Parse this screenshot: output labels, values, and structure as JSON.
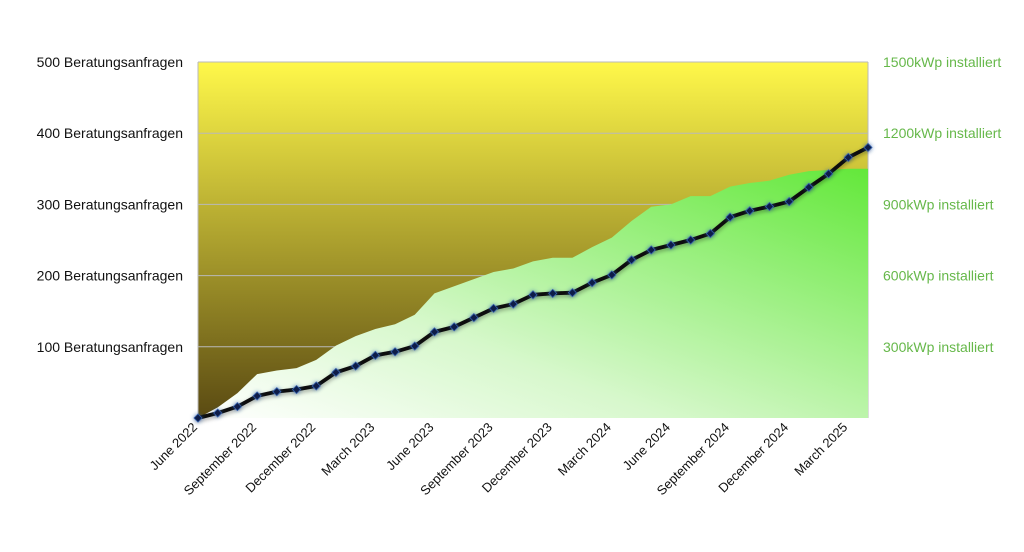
{
  "colors": {
    "plot_bg_top": "#FFF84A",
    "plot_bg_bottom": "#5A4A12",
    "area_fill": "#63E83A",
    "area_fill_light": "#FFFFFF",
    "line": "#0A0A0A",
    "marker": "#0F1E4A",
    "marker_glow": "#2A5AA8",
    "right_axis_text": "#66B84A",
    "grid": "#B9B9B9"
  },
  "chart_data": {
    "type": "line",
    "x": [
      "June 2022",
      "July 2022",
      "August 2022",
      "September 2022",
      "October 2022",
      "November 2022",
      "December 2022",
      "January 2023",
      "February 2023",
      "March 2023",
      "April 2023",
      "May 2023",
      "June 2023",
      "July 2023",
      "August 2023",
      "September 2023",
      "October 2023",
      "November 2023",
      "December 2023",
      "January 2024",
      "February 2024",
      "March 2024",
      "April 2024",
      "May 2024",
      "June 2024",
      "July 2024",
      "August 2024",
      "September 2024",
      "October 2024",
      "November 2024",
      "December 2024",
      "January 2025",
      "February 2025",
      "March 2025",
      "April 2025"
    ],
    "x_tick_labels": [
      "June 2022",
      "September 2022",
      "December 2022",
      "March 2023",
      "June 2023",
      "September 2023",
      "December 2023",
      "March 2024",
      "June 2024",
      "September 2024",
      "December 2024",
      "March 2025"
    ],
    "left_axis": {
      "ylim": [
        0,
        500
      ],
      "ticks": [
        {
          "value": 100,
          "label": "100 Beratungsanfragen"
        },
        {
          "value": 200,
          "label": "200 Beratungsanfragen"
        },
        {
          "value": 300,
          "label": "300 Beratungsanfragen"
        },
        {
          "value": 400,
          "label": "400 Beratungsanfragen"
        },
        {
          "value": 500,
          "label": "500 Beratungsanfragen"
        }
      ]
    },
    "right_axis": {
      "ylim": [
        0,
        1500
      ],
      "ticks": [
        {
          "value": 300,
          "label": "300kWp installiert"
        },
        {
          "value": 600,
          "label": "600kWp installiert"
        },
        {
          "value": 900,
          "label": "900kWp installiert"
        },
        {
          "value": 1200,
          "label": "1200kWp installiert"
        },
        {
          "value": 1500,
          "label": "1500kWp installiert"
        }
      ]
    },
    "grid": true,
    "series": [
      {
        "type": "line",
        "axis": "left",
        "values": [
          0,
          7,
          16,
          31,
          37,
          40,
          45,
          64,
          73,
          88,
          93,
          101,
          121,
          128,
          141,
          154,
          160,
          173,
          175,
          176,
          190,
          201,
          222,
          236,
          243,
          250,
          259,
          282,
          291,
          297,
          304,
          324,
          343,
          366,
          380
        ]
      },
      {
        "type": "area",
        "axis": "right",
        "values": [
          0,
          45,
          105,
          185,
          200,
          210,
          245,
          305,
          345,
          375,
          395,
          435,
          525,
          555,
          585,
          615,
          630,
          660,
          675,
          675,
          720,
          760,
          830,
          890,
          900,
          935,
          935,
          975,
          990,
          1000,
          1025,
          1040,
          1045,
          1050,
          1050
        ]
      }
    ]
  }
}
